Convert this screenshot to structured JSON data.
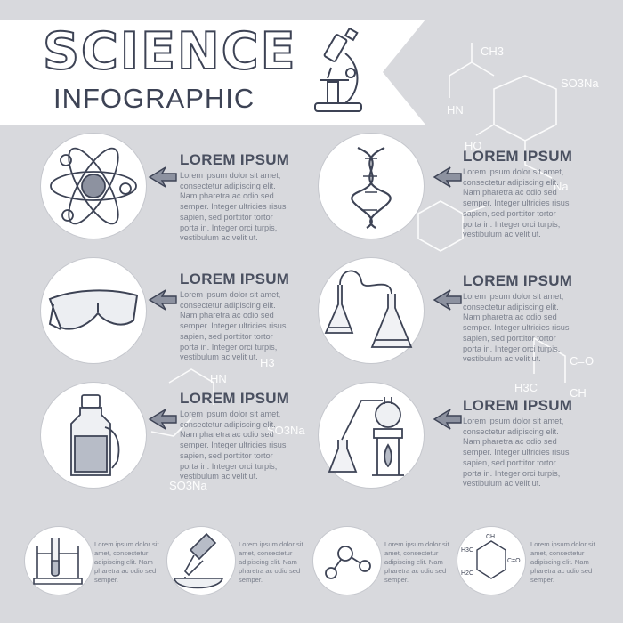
{
  "header": {
    "title": "SCIENCE",
    "subtitle": "INFOGRAPHIC"
  },
  "items": [
    {
      "icon": "atom-icon",
      "title": "LOREM IPSUM",
      "body": "Lorem ipsum dolor sit amet, consectetur adipiscing elit. Nam pharetra ac odio sed semper. Integer ultricies risus sapien, sed porttitor tortor porta in. Integer orci turpis, vestibulum ac velit ut."
    },
    {
      "icon": "dna-icon",
      "title": "LOREM IPSUM",
      "body": "Lorem ipsum dolor sit amet, consectetur adipiscing elit. Nam pharetra ac odio sed semper. Integer ultricies risus sapien, sed porttitor tortor porta in. Integer orci turpis, vestibulum ac velit ut."
    },
    {
      "icon": "safety-goggles-icon",
      "title": "LOREM IPSUM",
      "body": "Lorem ipsum dolor sit amet, consectetur adipiscing elit. Nam pharetra ac odio sed semper. Integer ultricies risus sapien, sed porttitor tortor porta in. Integer orci turpis, vestibulum ac velit ut."
    },
    {
      "icon": "connected-flasks-icon",
      "title": "LOREM IPSUM",
      "body": "Lorem ipsum dolor sit amet, consectetur adipiscing elit. Nam pharetra ac odio sed semper. Integer ultricies risus sapien, sed porttitor tortor porta in. Integer orci turpis, vestibulum ac velit ut."
    },
    {
      "icon": "bottle-icon",
      "title": "LOREM IPSUM",
      "body": "Lorem ipsum dolor sit amet, consectetur adipiscing elit. Nam pharetra ac odio sed semper. Integer ultricies risus sapien, sed porttitor tortor porta in. Integer orci turpis, vestibulum ac velit ut."
    },
    {
      "icon": "distillation-icon",
      "title": "LOREM IPSUM",
      "body": "Lorem ipsum dolor sit amet, consectetur adipiscing elit. Nam pharetra ac odio sed semper. Integer ultricies risus sapien, sed porttitor tortor porta in. Integer orci turpis, vestibulum ac velit ut."
    }
  ],
  "small_items": [
    {
      "icon": "test-tube-icon",
      "body": "Lorem ipsum dolor sit amet, consectetur adipiscing elit. Nam pharetra ac odio sed semper."
    },
    {
      "icon": "pipette-icon",
      "body": "Lorem ipsum dolor sit amet, consectetur adipiscing elit. Nam pharetra ac odio sed semper."
    },
    {
      "icon": "molecule-icon",
      "body": "Lorem ipsum dolor sit amet, consectetur adipiscing elit. Nam pharetra ac odio sed semper."
    },
    {
      "icon": "hexagon-formula-icon",
      "body": "Lorem ipsum dolor sit amet, consectetur adipiscing elit. Nam pharetra ac odio sed semper."
    }
  ],
  "formulas": {
    "ch3": "CH3",
    "hn": "HN",
    "so3na": "SO3Na",
    "ho": "HO",
    "na": "Na",
    "c_o": "C=O",
    "h3c": "H3C",
    "ch": "CH",
    "hn2": "HN",
    "so3na2": "SO3Na",
    "so3na3": "SO3Na",
    "h3": "H3",
    "hex_h3c": "H3C",
    "hex_co": "C=O",
    "hex_h2c": "H2C",
    "hex_ch": "CH"
  },
  "colors": {
    "background": "#d8d9dd",
    "ink": "#3d4355",
    "circle_fill": "#ffffff",
    "body_text": "#7b808d"
  }
}
